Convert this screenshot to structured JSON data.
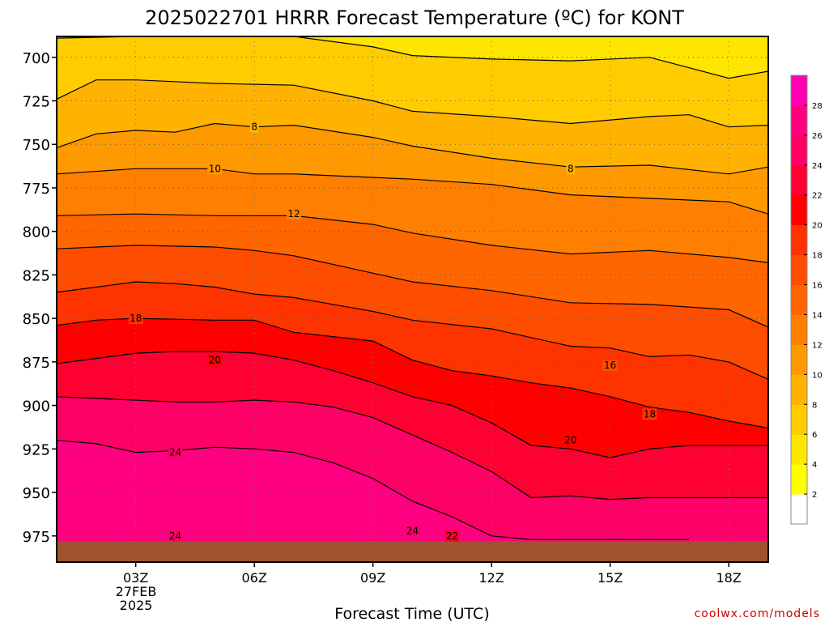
{
  "chart_data": {
    "type": "filled-contour time-height cross section",
    "title": "2025022701 HRRR Forecast Temperature (ºC) for KONT",
    "xlabel": "Forecast Time (UTC)",
    "ylabel": "",
    "credit": "coolwx.com/models",
    "x_ticks": [
      {
        "hour": 3,
        "label": "03Z"
      },
      {
        "hour": 6,
        "label": "06Z"
      },
      {
        "hour": 9,
        "label": "09Z"
      },
      {
        "hour": 12,
        "label": "12Z"
      },
      {
        "hour": 15,
        "label": "15Z"
      },
      {
        "hour": 18,
        "label": "18Z"
      }
    ],
    "x_date_label": [
      "27FEB",
      "2025"
    ],
    "xlim_hours": [
      1,
      19
    ],
    "y_ticks": [
      700,
      725,
      750,
      775,
      800,
      825,
      850,
      875,
      900,
      925,
      950,
      975
    ],
    "ylim_hPa": [
      688,
      990
    ],
    "ground_pressure_hPa": 978,
    "grid": true,
    "colorbar": {
      "levels": [
        0,
        2,
        4,
        6,
        8,
        10,
        12,
        14,
        16,
        18,
        20,
        22,
        24,
        26,
        28,
        30
      ],
      "tick_labels": [
        2,
        4,
        6,
        8,
        10,
        12,
        14,
        16,
        18,
        20,
        22,
        24,
        26,
        28
      ],
      "colors": [
        "#ffffff",
        "#ffff00",
        "#ffe600",
        "#ffcc00",
        "#ffb300",
        "#ff9900",
        "#ff8000",
        "#ff6600",
        "#ff4d00",
        "#ff3300",
        "#ff0000",
        "#ff0033",
        "#ff0066",
        "#ff0080",
        "#ff00b3"
      ]
    },
    "isotherms": [
      {
        "temp_c": 6,
        "hours": [
          1,
          3,
          5,
          7,
          9,
          10,
          12,
          14,
          16,
          18,
          19
        ],
        "pressure_hPa": [
          689,
          688,
          688,
          688,
          694,
          699,
          701,
          702,
          700,
          712,
          708
        ]
      },
      {
        "temp_c": 8,
        "hours": [
          1,
          2,
          3,
          5,
          7,
          9,
          10,
          12,
          14,
          16,
          17,
          18,
          19
        ],
        "pressure_hPa": [
          724,
          713,
          713,
          715,
          716,
          725,
          731,
          734,
          738,
          734,
          733,
          740,
          739
        ]
      },
      {
        "temp_c": 10,
        "hours": [
          1,
          2,
          3,
          4,
          5,
          6,
          7,
          9,
          10,
          12,
          14,
          16,
          18,
          19
        ],
        "pressure_hPa": [
          752,
          744,
          742,
          743,
          738,
          740,
          739,
          746,
          751,
          758,
          763,
          762,
          767,
          763
        ]
      },
      {
        "temp_c": 12,
        "hours": [
          1,
          3,
          5,
          6,
          7,
          9,
          10,
          12,
          14,
          16,
          18,
          19
        ],
        "pressure_hPa": [
          767,
          764,
          764,
          767,
          767,
          769,
          770,
          773,
          779,
          781,
          783,
          790
        ]
      },
      {
        "temp_c": 14,
        "hours": [
          1,
          3,
          5,
          6,
          7,
          9,
          10,
          12,
          14,
          16,
          18,
          19
        ],
        "pressure_hPa": [
          791,
          790,
          791,
          791,
          791,
          796,
          801,
          808,
          813,
          811,
          815,
          818
        ]
      },
      {
        "temp_c": 16,
        "hours": [
          1,
          3,
          5,
          6,
          7,
          9,
          10,
          12,
          14,
          16,
          18,
          19
        ],
        "pressure_hPa": [
          810,
          808,
          809,
          811,
          814,
          824,
          829,
          834,
          841,
          842,
          845,
          855
        ]
      },
      {
        "temp_c": 18,
        "hours": [
          1,
          2,
          3,
          4,
          5,
          6,
          7,
          9,
          10,
          12,
          13,
          14,
          15,
          16,
          17,
          18,
          19
        ],
        "pressure_hPa": [
          835,
          832,
          829,
          830,
          832,
          836,
          838,
          846,
          851,
          856,
          861,
          866,
          867,
          872,
          871,
          875,
          885
        ]
      },
      {
        "temp_c": 20,
        "hours": [
          1,
          2,
          3,
          5,
          6,
          7,
          9,
          10,
          11,
          12,
          13,
          14,
          15,
          16,
          17,
          18,
          19
        ],
        "pressure_hPa": [
          854,
          851,
          850,
          851,
          851,
          858,
          863,
          874,
          880,
          883,
          887,
          890,
          895,
          901,
          904,
          909,
          913
        ]
      },
      {
        "temp_c": 22,
        "hours": [
          1,
          2,
          3,
          4,
          5,
          6,
          7,
          8,
          9,
          10,
          11,
          12,
          13,
          14,
          15,
          16,
          17,
          18,
          19
        ],
        "pressure_hPa": [
          876,
          873,
          870,
          869,
          869,
          870,
          874,
          880,
          887,
          895,
          900,
          910,
          923,
          925,
          930,
          925,
          923,
          923,
          923
        ]
      },
      {
        "temp_c": 24,
        "hours": [
          1,
          2,
          3,
          4,
          5,
          6,
          7,
          8,
          9,
          10,
          11,
          12,
          13,
          14,
          15,
          16,
          17,
          18,
          19
        ],
        "pressure_hPa": [
          895,
          896,
          897,
          898,
          898,
          897,
          898,
          901,
          907,
          917,
          927,
          938,
          953,
          952,
          954,
          953,
          953,
          953,
          953
        ]
      },
      {
        "temp_c": 26,
        "hours": [
          1,
          2,
          3,
          4,
          5,
          6,
          7,
          8,
          9,
          10,
          11,
          12,
          13,
          14,
          15,
          16,
          17
        ],
        "pressure_hPa": [
          920,
          922,
          927,
          926,
          924,
          925,
          927,
          933,
          942,
          955,
          964,
          975,
          977,
          977,
          977,
          977,
          977
        ]
      }
    ],
    "contour_labels": [
      {
        "text": "8",
        "hour": 6,
        "pressure_hPa": 740
      },
      {
        "text": "8",
        "hour": 14,
        "pressure_hPa": 764
      },
      {
        "text": "10",
        "hour": 5,
        "pressure_hPa": 764
      },
      {
        "text": "12",
        "hour": 7,
        "pressure_hPa": 790
      },
      {
        "text": "18",
        "hour": 3,
        "pressure_hPa": 850
      },
      {
        "text": "20",
        "hour": 5,
        "pressure_hPa": 874
      },
      {
        "text": "16",
        "hour": 15,
        "pressure_hPa": 877
      },
      {
        "text": "18",
        "hour": 16,
        "pressure_hPa": 905
      },
      {
        "text": "20",
        "hour": 14,
        "pressure_hPa": 920
      },
      {
        "text": "24",
        "hour": 4,
        "pressure_hPa": 927
      },
      {
        "text": "24",
        "hour": 4,
        "pressure_hPa": 975
      },
      {
        "text": "24",
        "hour": 10,
        "pressure_hPa": 972
      },
      {
        "text": "22",
        "hour": 11,
        "pressure_hPa": 975
      }
    ]
  }
}
